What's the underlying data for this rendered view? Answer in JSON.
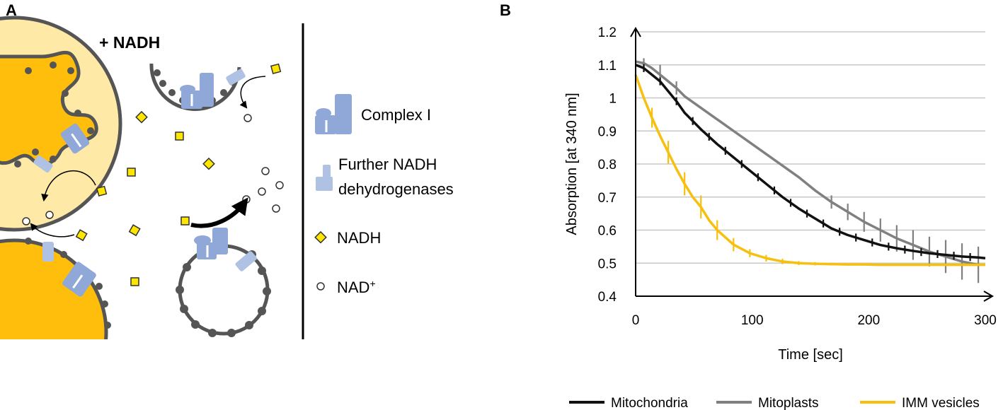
{
  "panel_a": {
    "label": "A",
    "condition": "+ NADH",
    "legend": {
      "complex_i": "Complex I",
      "further_line1": "Further NADH",
      "further_line2": "dehydrogenases",
      "nadh": "NADH",
      "nad_base": "NAD",
      "nad_sup": "+"
    }
  },
  "panel_b": {
    "label": "B"
  },
  "colors": {
    "orange": "#FFBE0B",
    "light_orange": "#FFE9A6",
    "membrane": "#555555",
    "complex_blue": "#8FA8D8",
    "further_blue": "#AFC2E4",
    "nadh_yellow": "#FFE600",
    "mitochondria": "#111111",
    "mitoplasts": "#808080",
    "imm_vesicles": "#F7C00F",
    "grid": "#C8C8C8"
  },
  "chart_data": {
    "type": "line",
    "title": "",
    "xlabel": "Time [sec]",
    "ylabel": "Absorption [at 340 nm]",
    "xlim": [
      0,
      300
    ],
    "ylim": [
      0.4,
      1.2
    ],
    "xticks": [
      0,
      100,
      200,
      300
    ],
    "yticks": [
      0.4,
      0.5,
      0.6,
      0.7,
      0.8,
      0.9,
      1.0,
      1.1,
      1.2
    ],
    "xtick_labels": [
      "0",
      "100",
      "200",
      "300"
    ],
    "ytick_labels": [
      "0.4",
      "0.5",
      "0.6",
      "0.7",
      "0.8",
      "0.9",
      "1",
      "1.1",
      "1.2"
    ],
    "grid": true,
    "legend_position": "bottom",
    "series": [
      {
        "name": "Mitochondria",
        "color": "#111111",
        "x": [
          0,
          7,
          14,
          21,
          28,
          35,
          42,
          56,
          70,
          84,
          98,
          112,
          126,
          140,
          154,
          168,
          182,
          196,
          210,
          224,
          238,
          252,
          266,
          280,
          294,
          300
        ],
        "y": [
          1.1,
          1.09,
          1.07,
          1.05,
          1.02,
          0.99,
          0.955,
          0.905,
          0.86,
          0.82,
          0.78,
          0.74,
          0.7,
          0.665,
          0.635,
          0.605,
          0.585,
          0.57,
          0.555,
          0.545,
          0.537,
          0.53,
          0.525,
          0.52,
          0.517,
          0.515
        ],
        "error_x": [
          7,
          21,
          35,
          49,
          63,
          77,
          91,
          105,
          119,
          133,
          147,
          161,
          175,
          189,
          203,
          217,
          231,
          245,
          259,
          273,
          287
        ],
        "error": 0.012
      },
      {
        "name": "Mitoplasts",
        "color": "#808080",
        "x": [
          0,
          7,
          14,
          21,
          28,
          35,
          42,
          56,
          70,
          84,
          98,
          112,
          126,
          140,
          154,
          168,
          182,
          196,
          210,
          224,
          238,
          252,
          266,
          280,
          294
        ],
        "y": [
          1.11,
          1.105,
          1.09,
          1.07,
          1.05,
          1.03,
          1.005,
          0.97,
          0.935,
          0.9,
          0.865,
          0.83,
          0.795,
          0.76,
          0.72,
          0.685,
          0.655,
          0.625,
          0.6,
          0.575,
          0.555,
          0.535,
          0.52,
          0.505,
          0.495
        ],
        "error_x": [
          7,
          21,
          35,
          168,
          182,
          196,
          210,
          224,
          238,
          252,
          266,
          280,
          294
        ],
        "error_vals": [
          0.015,
          0.03,
          0.02,
          0.02,
          0.025,
          0.03,
          0.035,
          0.04,
          0.045,
          0.045,
          0.05,
          0.055,
          0.055
        ]
      },
      {
        "name": "IMM vesicles",
        "color": "#F7C00F",
        "x": [
          0,
          7,
          14,
          21,
          28,
          35,
          42,
          49,
          56,
          63,
          70,
          84,
          98,
          112,
          126,
          140,
          154,
          168,
          182,
          196,
          210,
          224,
          238,
          252,
          266,
          280,
          294,
          300
        ],
        "y": [
          1.07,
          1.0,
          0.94,
          0.885,
          0.835,
          0.785,
          0.74,
          0.7,
          0.67,
          0.63,
          0.6,
          0.556,
          0.53,
          0.515,
          0.505,
          0.5,
          0.498,
          0.497,
          0.496,
          0.496,
          0.495,
          0.495,
          0.495,
          0.495,
          0.495,
          0.495,
          0.495,
          0.495
        ],
        "error_x": [
          14,
          28,
          42,
          56,
          70,
          84,
          98,
          112,
          126,
          140,
          154,
          168,
          182,
          196
        ],
        "error_vals": [
          0.03,
          0.035,
          0.035,
          0.035,
          0.03,
          0.02,
          0.012,
          0.01,
          0.008,
          0.006,
          0.005,
          0.004,
          0.003,
          0.003
        ]
      }
    ]
  }
}
